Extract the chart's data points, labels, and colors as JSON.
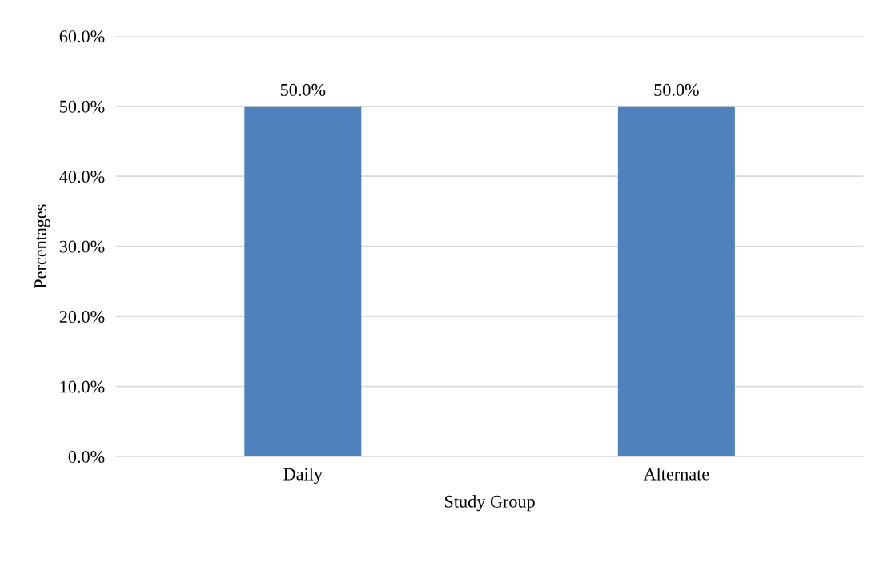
{
  "chart_data": {
    "type": "bar",
    "xlabel": "Study Group",
    "ylabel": "Percentages",
    "categories": [
      "Daily",
      "Alternate"
    ],
    "values": [
      50,
      50
    ],
    "color": "#4f81bd",
    "value_labels": [
      "50.0%",
      "50.0%"
    ],
    "ylim": [
      0,
      60
    ],
    "yticks": [
      {
        "value": 0,
        "label": "0.0%"
      },
      {
        "value": 10,
        "label": "10.0%"
      },
      {
        "value": 20,
        "label": "20.0%"
      },
      {
        "value": 30,
        "label": "30.0%"
      },
      {
        "value": 40,
        "label": "40.0%"
      },
      {
        "value": 50,
        "label": "50.0%"
      },
      {
        "value": 60,
        "label": "60.0%"
      }
    ],
    "grid": "y",
    "legend": false
  }
}
